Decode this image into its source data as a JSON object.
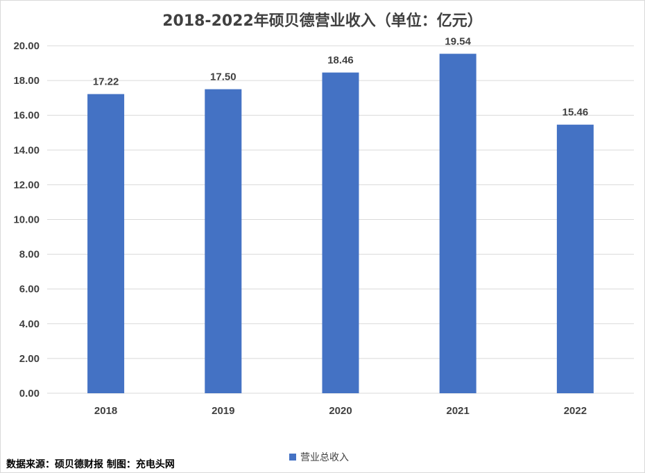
{
  "colors": {
    "bar": "#4472C4",
    "grid": "#d9d9d9",
    "text": "#404040"
  },
  "source_note": "数据来源：硕贝德财报  制图：充电头网",
  "chart_data": {
    "type": "bar",
    "title": "2018-2022年硕贝德营业收入（单位：亿元）",
    "categories": [
      "2018",
      "2019",
      "2020",
      "2021",
      "2022"
    ],
    "series": [
      {
        "name": "营业总收入",
        "values": [
          17.22,
          17.5,
          18.46,
          19.54,
          15.46
        ]
      }
    ],
    "data_labels": [
      "17.22",
      "17.50",
      "18.46",
      "19.54",
      "15.46"
    ],
    "ylim": [
      0,
      20
    ],
    "yticks": [
      "0.00",
      "2.00",
      "4.00",
      "6.00",
      "8.00",
      "10.00",
      "12.00",
      "14.00",
      "16.00",
      "18.00",
      "20.00"
    ],
    "xlabel": "",
    "ylabel": "",
    "grid": true,
    "legend_position": "bottom"
  }
}
